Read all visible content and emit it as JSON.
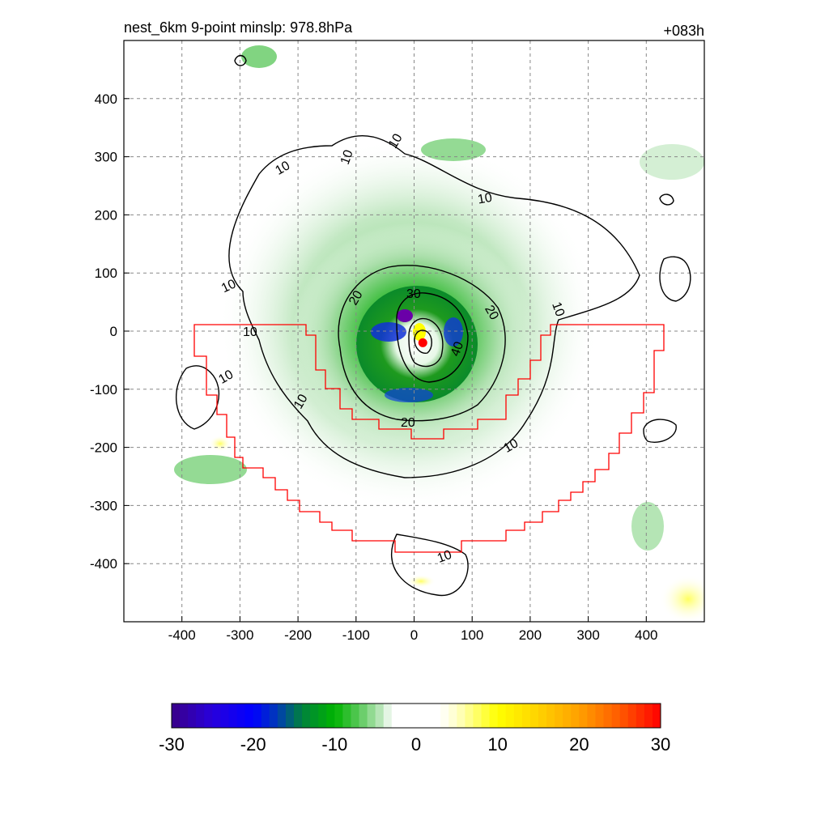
{
  "chart_data": {
    "type": "heatmap",
    "title": "nest_6km  9-point minslp: 978.8hPa",
    "title_right": "+083h",
    "xlim": [
      -500,
      500
    ],
    "ylim": [
      -500,
      500
    ],
    "x_ticks": [
      -400,
      -300,
      -200,
      -100,
      0,
      100,
      200,
      300,
      400
    ],
    "y_ticks": [
      -400,
      -300,
      -200,
      -100,
      0,
      100,
      200,
      300,
      400
    ],
    "grid": true,
    "center_marker": {
      "x": 15,
      "y": -20,
      "color": "#ff0000"
    },
    "contour_labels": [
      "10",
      "10",
      "10",
      "10",
      "10",
      "10",
      "10",
      "10",
      "10",
      "20",
      "20",
      "20",
      "30",
      "40"
    ],
    "contour_levels": [
      10,
      20,
      30,
      40
    ],
    "colorbar": {
      "ticks": [
        -30,
        -20,
        -10,
        0,
        10,
        20,
        30
      ],
      "range": [
        -30,
        30
      ],
      "colors": [
        "#3a0088",
        "#0000ff",
        "#008a3a",
        "#00b400",
        "#ffffff",
        "#ffff00",
        "#ff8c00",
        "#ff0000"
      ]
    }
  }
}
